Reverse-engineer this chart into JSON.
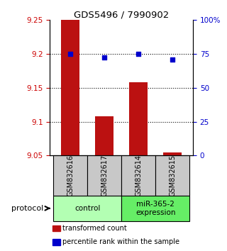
{
  "title": "GDS5496 / 7990902",
  "samples": [
    "GSM832616",
    "GSM832617",
    "GSM832614",
    "GSM832615"
  ],
  "groups": [
    {
      "label": "control",
      "indices": [
        0,
        1
      ],
      "color": "#b3ffb3"
    },
    {
      "label": "miR-365-2\nexpression",
      "indices": [
        2,
        3
      ],
      "color": "#66ee66"
    }
  ],
  "bar_values": [
    9.25,
    9.108,
    9.158,
    9.055
  ],
  "bar_baseline": 9.05,
  "bar_color": "#bb1111",
  "dot_values": [
    9.2,
    9.195,
    9.2,
    9.192
  ],
  "dot_color": "#0000cc",
  "ylim_left": [
    9.05,
    9.25
  ],
  "ylim_right": [
    0,
    100
  ],
  "yticks_left": [
    9.05,
    9.1,
    9.15,
    9.2,
    9.25
  ],
  "yticks_right": [
    0,
    25,
    50,
    75,
    100
  ],
  "ytick_labels_right": [
    "0",
    "25",
    "50",
    "75",
    "100%"
  ],
  "gridlines": [
    9.1,
    9.15,
    9.2
  ],
  "bar_width": 0.55,
  "left_tick_color": "#cc0000",
  "right_tick_color": "#0000cc",
  "legend_items": [
    {
      "color": "#bb1111",
      "marker": "s",
      "label": "transformed count"
    },
    {
      "color": "#0000cc",
      "marker": "s",
      "label": "percentile rank within the sample"
    }
  ],
  "protocol_label": "protocol",
  "sample_box_color": "#c8c8c8",
  "figsize": [
    3.2,
    3.54
  ],
  "dpi": 100
}
